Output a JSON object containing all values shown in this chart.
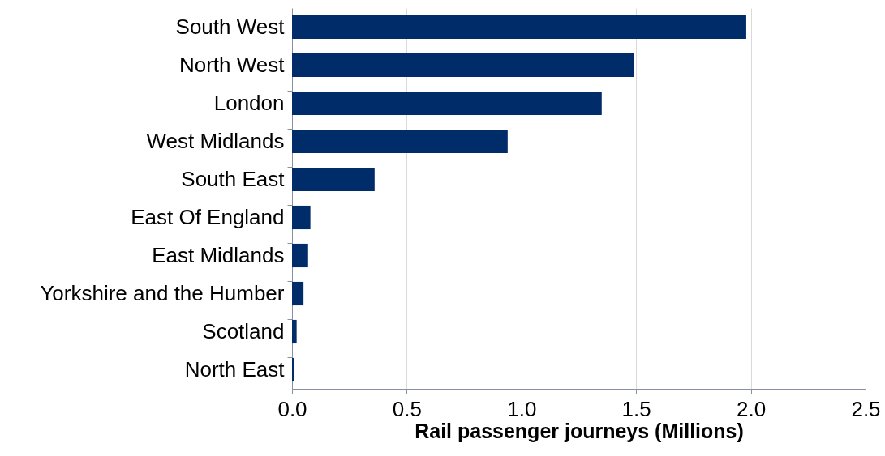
{
  "chart_data": {
    "type": "bar",
    "orientation": "horizontal",
    "xlabel": "Rail passenger journeys (Millions)",
    "categories": [
      "South West",
      "North West",
      "London",
      "West Midlands",
      "South East",
      "East Of England",
      "East Midlands",
      "Yorkshire and the Humber",
      "Scotland",
      "North East"
    ],
    "values": [
      1.98,
      1.49,
      1.35,
      0.94,
      0.36,
      0.08,
      0.07,
      0.05,
      0.02,
      0.01
    ],
    "color": "#002c6a",
    "xlim": [
      0,
      2.5
    ],
    "xticks": [
      {
        "value": 0,
        "label": "0.0"
      },
      0.5,
      {
        "value": 1,
        "label": "1.0"
      },
      1.5,
      {
        "value": 2,
        "label": "2.0"
      },
      2.5
    ],
    "grid": "x"
  }
}
